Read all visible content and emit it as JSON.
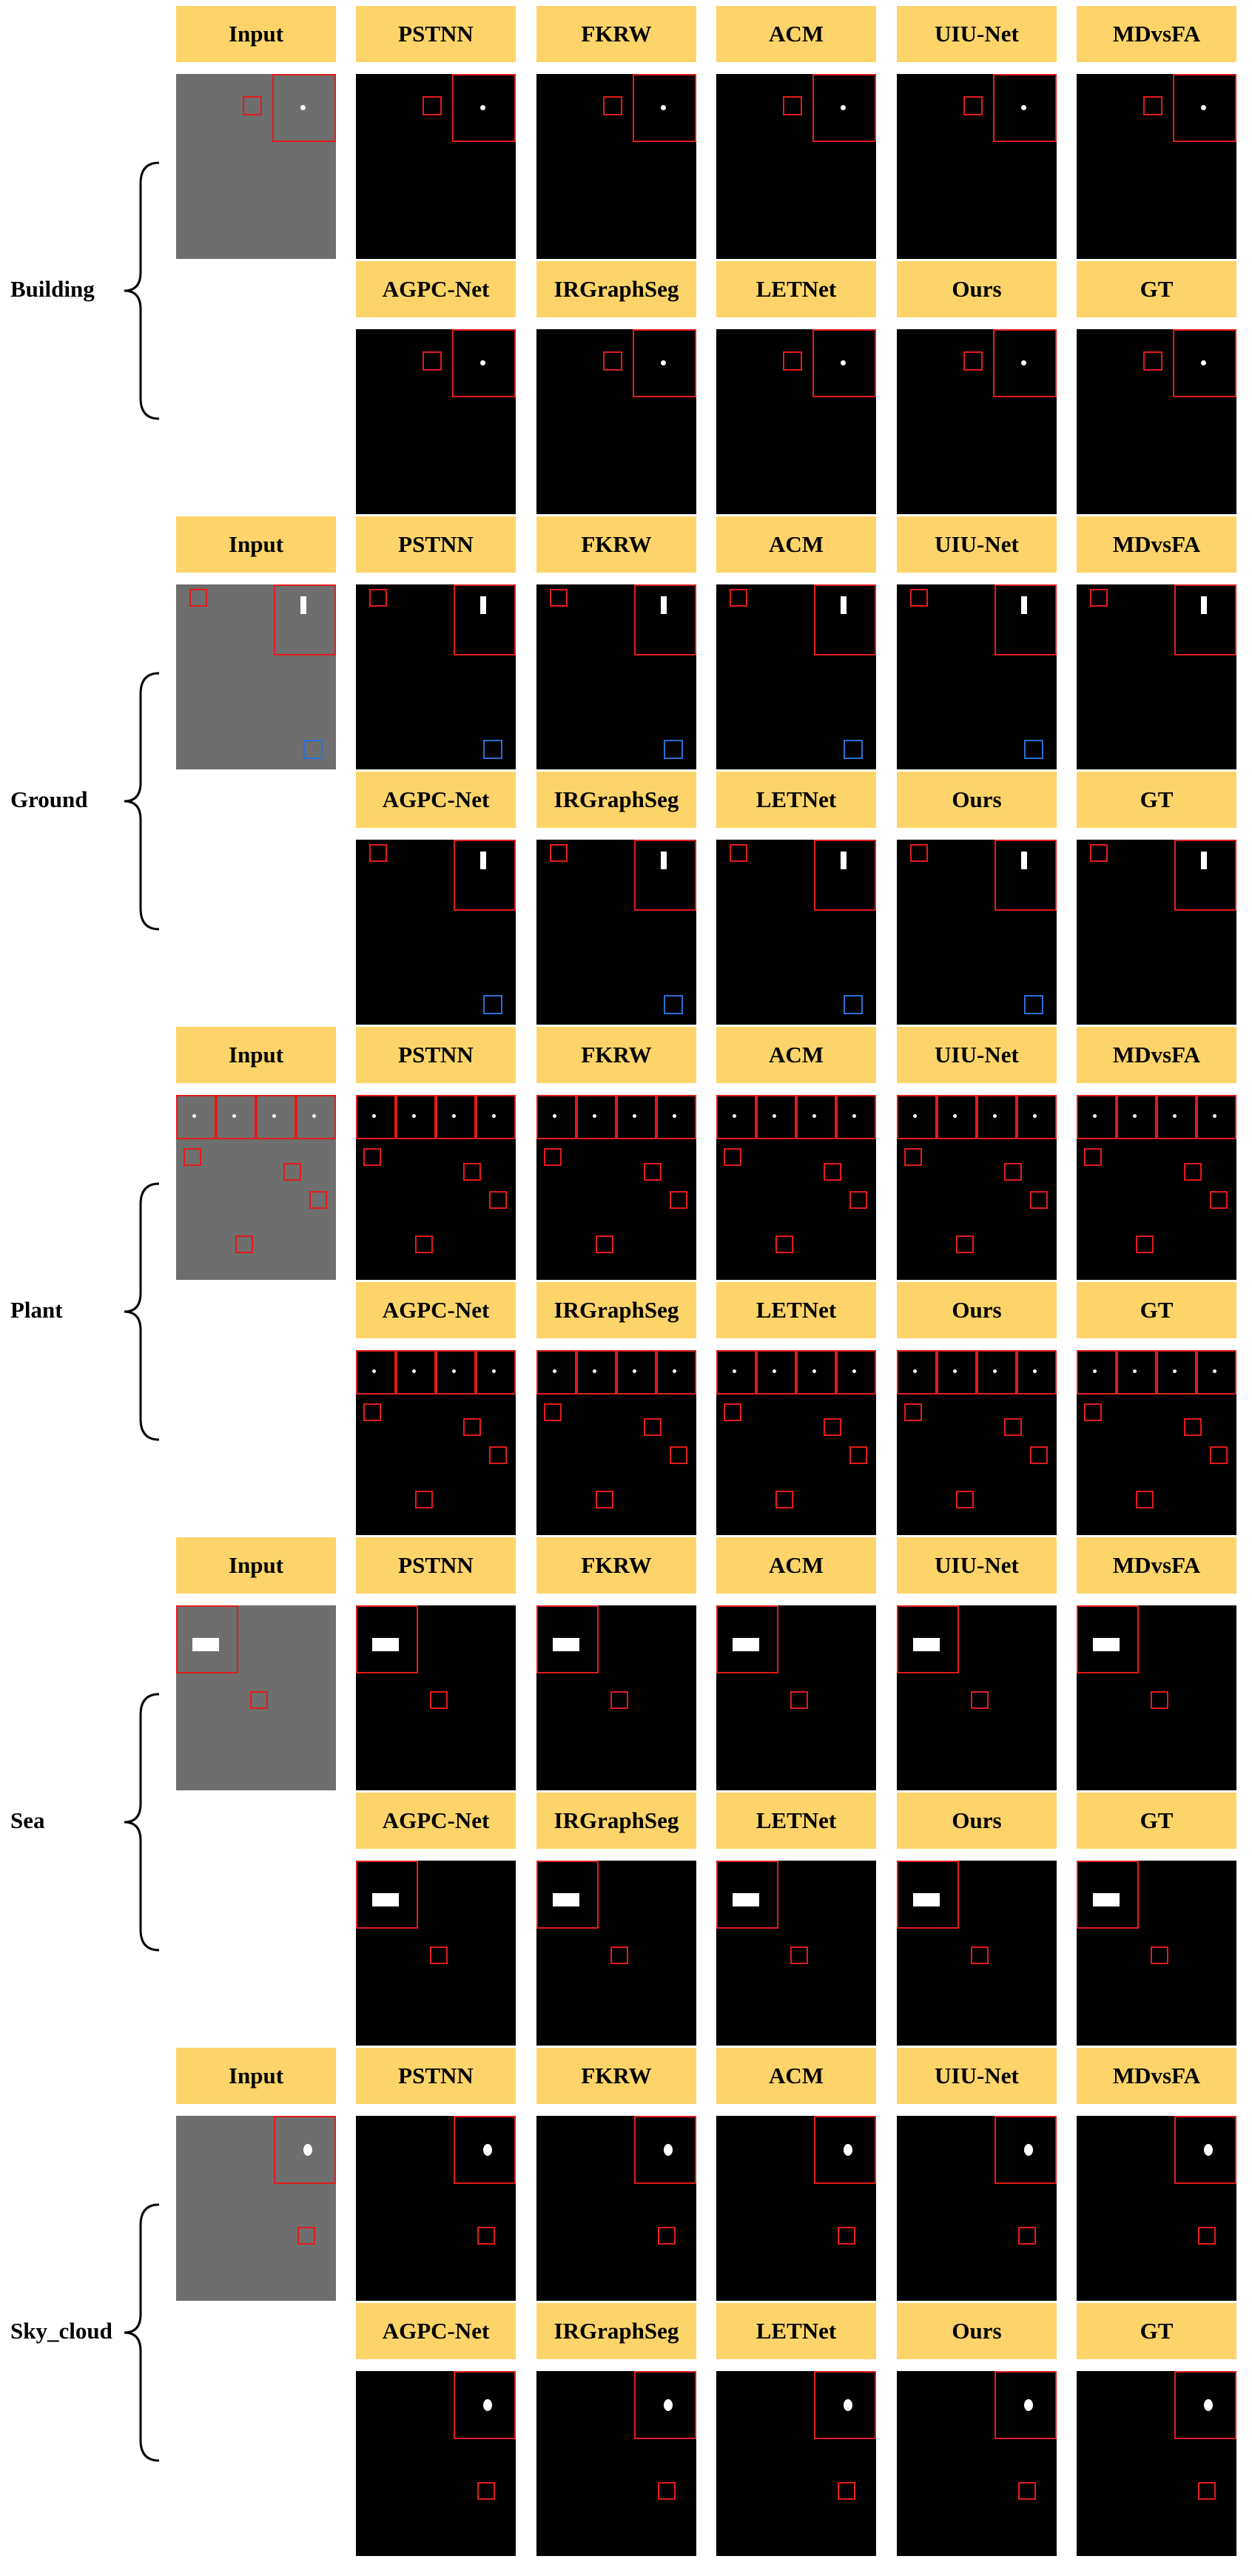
{
  "header_input": "Input",
  "methods": [
    "PSTNN",
    "FKRW",
    "ACM",
    "UIU-Net",
    "MDvsFA",
    "AGPC-Net",
    "IRGraphSeg",
    "LETNet",
    "Ours",
    "GT"
  ],
  "categories": [
    {
      "name": "Building"
    },
    {
      "name": "Ground"
    },
    {
      "name": "Plant"
    },
    {
      "name": "Sea"
    },
    {
      "name": "Sky_cloud"
    }
  ],
  "colors": {
    "label_bg": "#FCD469",
    "panel_bg": "#000000",
    "box_red": "#e21b1b",
    "box_blue": "#2a6fd6",
    "box_yellow": "#ffe400"
  }
}
